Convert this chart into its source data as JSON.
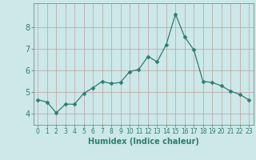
{
  "x": [
    0,
    1,
    2,
    3,
    4,
    5,
    6,
    7,
    8,
    9,
    10,
    11,
    12,
    13,
    14,
    15,
    16,
    17,
    18,
    19,
    20,
    21,
    22,
    23
  ],
  "y": [
    4.65,
    4.55,
    4.05,
    4.45,
    4.45,
    4.95,
    5.2,
    5.5,
    5.4,
    5.45,
    5.95,
    6.05,
    6.65,
    6.4,
    7.2,
    8.6,
    7.55,
    6.95,
    5.5,
    5.45,
    5.3,
    5.05,
    4.9,
    4.65
  ],
  "line_color": "#2e7d6e",
  "marker": "D",
  "marker_size": 2.5,
  "bg_color": "#cce8e8",
  "grid_color": "#c0a0a0",
  "axis_color": "#2e7d6e",
  "xlabel": "Humidex (Indice chaleur)",
  "xlabel_fontsize": 7,
  "ylabel_ticks": [
    4,
    5,
    6,
    7,
    8
  ],
  "xlim": [
    -0.5,
    23.5
  ],
  "ylim": [
    3.5,
    9.1
  ],
  "ytick_fontsize": 7,
  "xtick_fontsize": 5.5
}
